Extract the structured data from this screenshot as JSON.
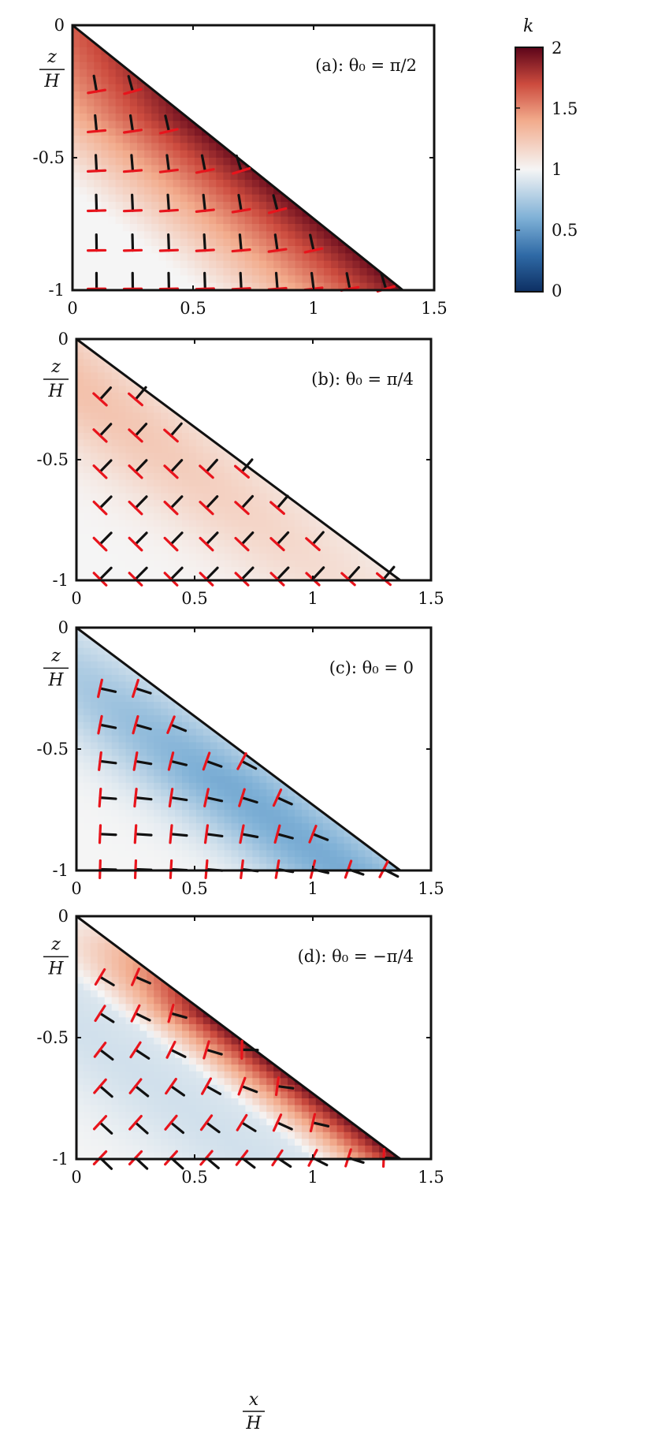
{
  "colorbar": {
    "label": "k",
    "range": [
      0,
      2
    ],
    "ticks": [
      "2",
      "1.5",
      "1",
      "0.5",
      "0"
    ]
  },
  "axes": {
    "xlabel_num": "x",
    "xlabel_den": "H",
    "ylabel_num": "z",
    "ylabel_den": "H"
  },
  "colors": {
    "neg": "#1f4f86",
    "pos": "#7a0a1c",
    "mid": "#f7f7f7",
    "director_black": "#111111",
    "director_red": "#e8141c"
  },
  "chart_data": [
    {
      "type": "heatmap",
      "panel_label": "(a):  θ₀ = π/2",
      "theta0": 1.5708,
      "xlim": [
        0,
        1.5
      ],
      "ylim": [
        -1,
        0
      ],
      "xticks": [
        "0",
        "0.5",
        "1",
        "1.5"
      ],
      "yticks": [
        "0",
        "-0.5",
        "-1"
      ],
      "boundary": {
        "x_end": 1.37,
        "z_end": -1
      },
      "k_profile": "strong_positive"
    },
    {
      "type": "heatmap",
      "panel_label": "(b):  θ₀ = π/4",
      "theta0": 0.7854,
      "xlim": [
        0,
        1.5
      ],
      "ylim": [
        -1,
        0
      ],
      "xticks": [
        "0",
        "0.5",
        "1",
        "1.5"
      ],
      "yticks": [
        "0",
        "-0.5",
        "-1"
      ],
      "boundary": {
        "x_end": 1.37,
        "z_end": -1
      },
      "k_profile": "mild_positive"
    },
    {
      "type": "heatmap",
      "panel_label": "(c):  θ₀ = 0",
      "theta0": 0,
      "xlim": [
        0,
        1.5
      ],
      "ylim": [
        -1,
        0
      ],
      "xticks": [
        "0",
        "0.5",
        "1",
        "1.5"
      ],
      "yticks": [
        "0",
        "-0.5",
        "-1"
      ],
      "boundary": {
        "x_end": 1.37,
        "z_end": -1
      },
      "k_profile": "negative"
    },
    {
      "type": "heatmap",
      "panel_label": "(d):  θ₀ = −π/4",
      "theta0": -0.7854,
      "xlim": [
        0,
        1.5
      ],
      "ylim": [
        -1,
        0
      ],
      "xticks": [
        "0",
        "0.5",
        "1",
        "1.5"
      ],
      "yticks": [
        "0",
        "-0.5",
        "-1"
      ],
      "boundary": {
        "x_end": 1.37,
        "z_end": -1
      },
      "k_profile": "mixed"
    }
  ]
}
